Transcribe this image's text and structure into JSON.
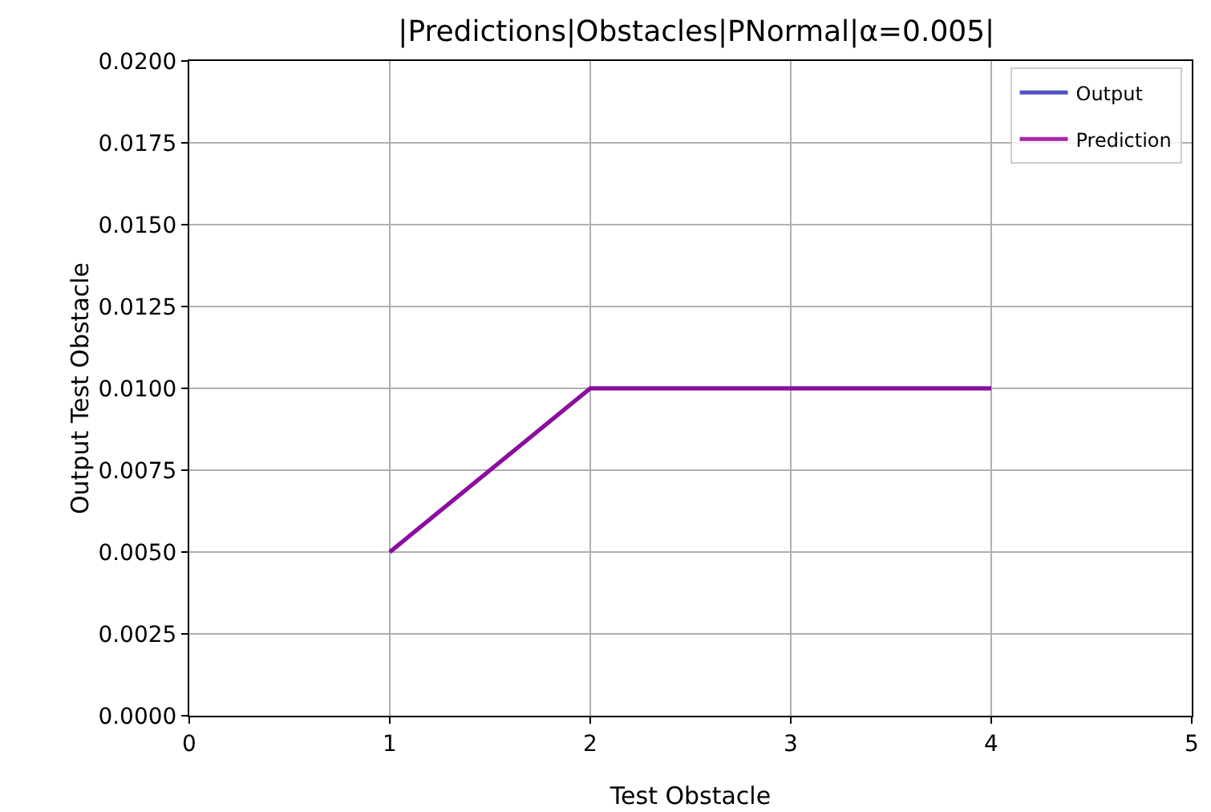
{
  "chart_data": {
    "type": "line",
    "title": "|Predictions|Obstacles|PNormal|α=0.005|",
    "xlabel": "Test Obstacle",
    "ylabel": "Output Test Obstacle",
    "x": [
      1,
      2,
      3,
      4
    ],
    "series": [
      {
        "name": "Output",
        "color": "#3333bb",
        "values": [
          0.005,
          0.01,
          0.01,
          0.01
        ]
      },
      {
        "name": "Prediction",
        "color": "#990099",
        "values": [
          0.005,
          0.01,
          0.01,
          0.01
        ]
      }
    ],
    "xlim": [
      0,
      5
    ],
    "xticks": [
      0,
      1,
      2,
      3,
      4,
      5
    ],
    "ylim": [
      0,
      0.02
    ],
    "yticks": [
      {
        "value": 0,
        "label": "0.0000"
      },
      {
        "value": 0.0025,
        "label": "0.0025"
      },
      {
        "value": 0.005,
        "label": "0.0050"
      },
      {
        "value": 0.0075,
        "label": "0.0075"
      },
      {
        "value": 0.01,
        "label": "0.0100"
      },
      {
        "value": 0.0125,
        "label": "0.0125"
      },
      {
        "value": 0.015,
        "label": "0.0150"
      },
      {
        "value": 0.0175,
        "label": "0.0175"
      },
      {
        "value": 0.02,
        "label": "0.0200"
      }
    ],
    "grid": true,
    "legend": "top right",
    "marker": "none",
    "line_style": "solid"
  }
}
